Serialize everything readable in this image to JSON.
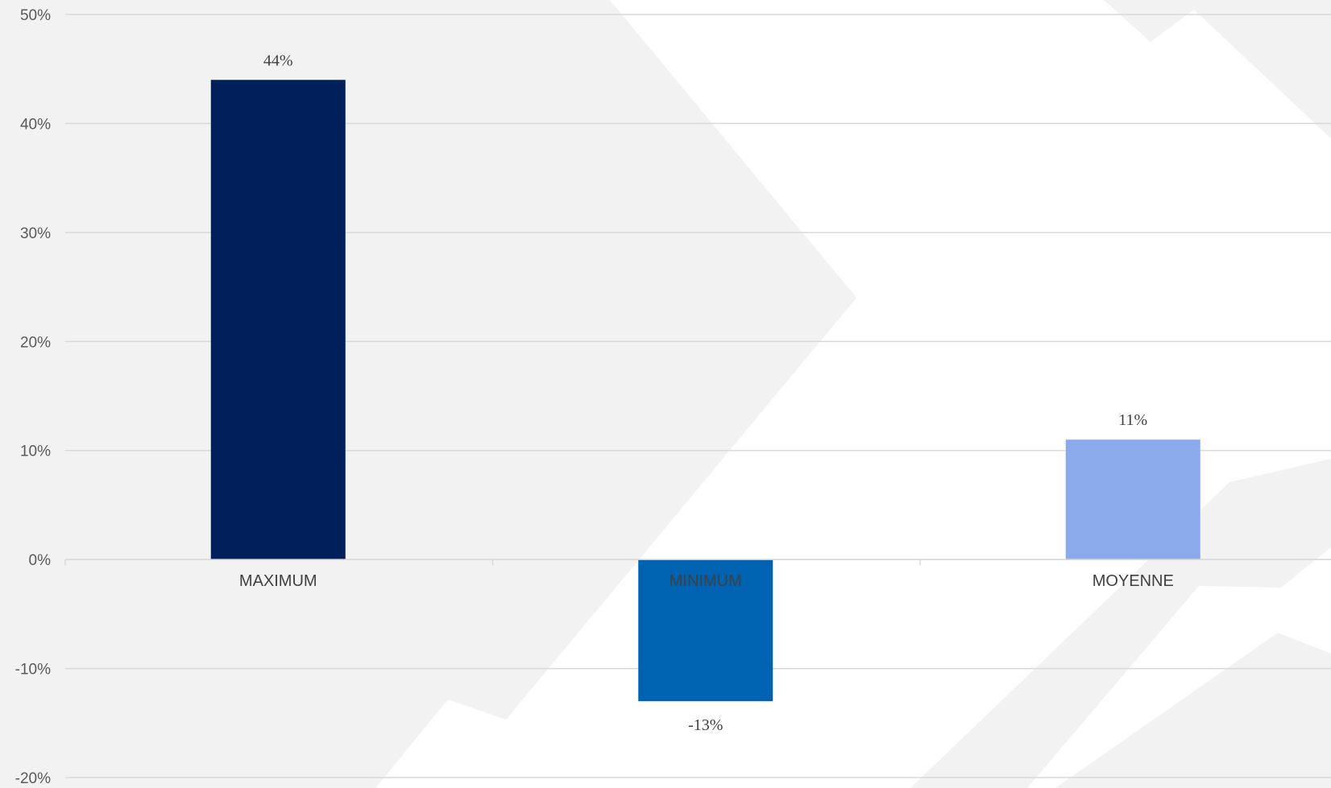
{
  "chart_data": {
    "type": "bar",
    "title": "",
    "xlabel": "",
    "ylabel": "",
    "categories": [
      "MAXIMUM",
      "MINIMUM",
      "MOYENNE"
    ],
    "values": [
      44,
      -13,
      11
    ],
    "data_labels": [
      "44%",
      "-13%",
      "11%"
    ],
    "bar_colors": [
      "#001f5b",
      "#0063b1",
      "#8aaaec"
    ],
    "ylim": [
      -20,
      50
    ],
    "yticks": [
      50,
      40,
      30,
      20,
      10,
      0,
      -10,
      -20
    ],
    "ytick_labels": [
      "50%",
      "40%",
      "30%",
      "20%",
      "10%",
      "0%",
      "-10%",
      "-20%"
    ],
    "grid": true,
    "legend": "none",
    "colors": {
      "background": "#ffffff",
      "backdrop_shape": "#f2f2f2",
      "gridline": "#d9d9d9",
      "axis_text": "#595959"
    }
  }
}
